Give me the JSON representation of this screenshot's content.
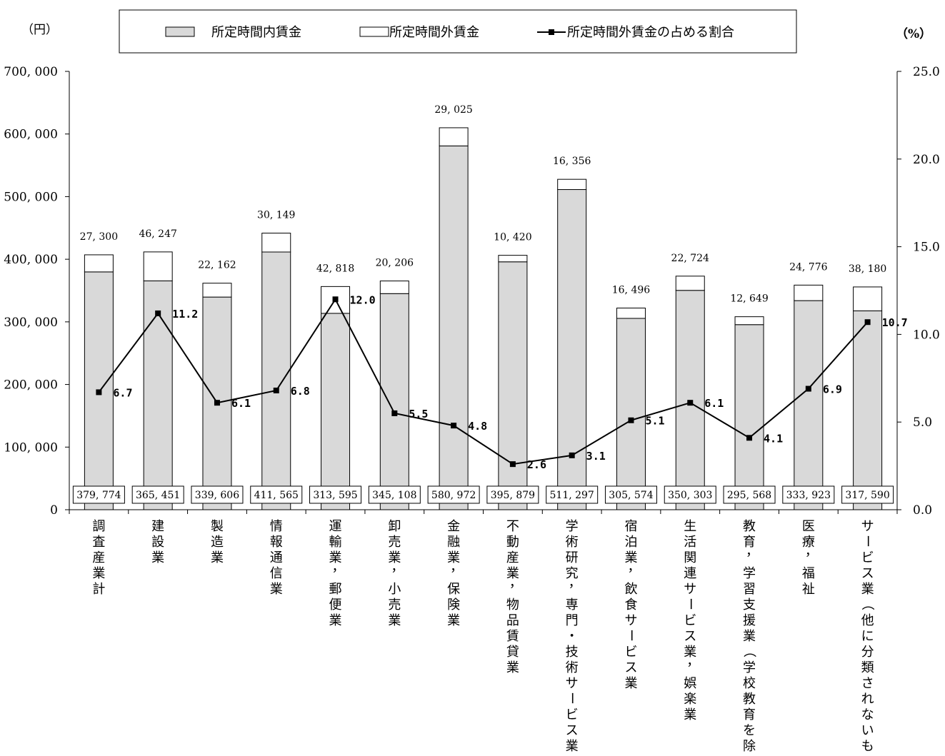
{
  "chart_data": {
    "type": "bar",
    "stacked": true,
    "y_unit_left": "（円）",
    "y_unit_right": "（%）",
    "ylim_left": [
      0,
      700000
    ],
    "yticks_left": [
      "0",
      "100, 000",
      "200, 000",
      "300, 000",
      "400, 000",
      "500, 000",
      "600, 000",
      "700, 000"
    ],
    "ylim_right": [
      0,
      25
    ],
    "yticks_right": [
      "0.0",
      "5.0",
      "10.0",
      "15.0",
      "20.0",
      "25.0"
    ],
    "legend": {
      "placement": "top",
      "items": [
        "所定時間内賃金",
        "所定時間外賃金",
        "所定時間外賃金の占める割合"
      ]
    },
    "categories": [
      "調査産業計",
      "建設業",
      "製造業",
      "情報通信業",
      "運輸業，郵便業",
      "卸売業，小売業",
      "金融業，保険業",
      "不動産業，物品賃貸業",
      "学術研究，専門・技術サービス業",
      "宿泊業，飲食サービス業",
      "生活関連サービス業，娯楽業",
      "教育，学習支援業（学校教育を除く）",
      "医療，福祉",
      "サービス業（他に分類されないもの）"
    ],
    "series": [
      {
        "name": "所定時間内賃金",
        "values": [
          379774,
          365451,
          339606,
          411565,
          313595,
          345108,
          580972,
          395879,
          511297,
          305574,
          350303,
          295568,
          333923,
          317590
        ],
        "labels": [
          "379, 774",
          "365, 451",
          "339, 606",
          "411, 565",
          "313, 595",
          "345, 108",
          "580, 972",
          "395, 879",
          "511, 297",
          "305, 574",
          "350, 303",
          "295, 568",
          "333, 923",
          "317, 590"
        ],
        "color": "#d9d9d9"
      },
      {
        "name": "所定時間外賃金",
        "values": [
          27300,
          46247,
          22162,
          30149,
          42818,
          20206,
          29025,
          10420,
          16356,
          16496,
          22724,
          12649,
          24776,
          38180
        ],
        "labels": [
          "27, 300",
          "46, 247",
          "22, 162",
          "30, 149",
          "42, 818",
          "20, 206",
          "29, 025",
          "10, 420",
          "16, 356",
          "16, 496",
          "22, 724",
          "12, 649",
          "24, 776",
          "38, 180"
        ],
        "color": "#ffffff"
      },
      {
        "name": "所定時間外賃金の占める割合",
        "type": "line",
        "axis": "right",
        "values": [
          6.7,
          11.2,
          6.1,
          6.8,
          12.0,
          5.5,
          4.8,
          2.6,
          3.1,
          5.1,
          6.1,
          4.1,
          6.9,
          10.7
        ],
        "labels": [
          "6.7",
          "11.2",
          "6.1",
          "6.8",
          "12.0",
          "5.5",
          "4.8",
          "2.6",
          "3.1",
          "5.1",
          "6.1",
          "4.1",
          "6.9",
          "10.7"
        ],
        "color": "#000000"
      }
    ],
    "grid": false
  }
}
